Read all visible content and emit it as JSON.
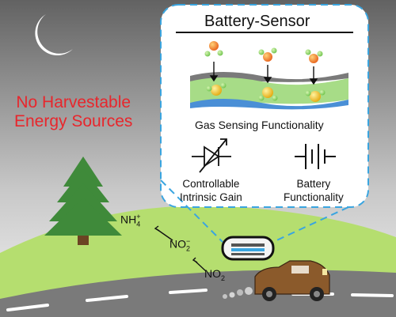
{
  "left_panel": {
    "headline_line1": "No Harvestable",
    "headline_line2": "Energy Sources"
  },
  "inset": {
    "title": "Battery-Sensor",
    "gas_sensing_label": "Gas Sensing Functionality",
    "gain_line1": "Controllable",
    "gain_line2": "Intrinsic Gain",
    "battery_line1": "Battery",
    "battery_line2": "Functionality"
  },
  "chemistry": {
    "nh4_base": "NH",
    "nh4_sub": "4",
    "nh4_sup": "+",
    "no2minus_base": "NO",
    "no2minus_sub": "2",
    "no2minus_sup": "−",
    "no2_base": "NO",
    "no2_sub": "2"
  },
  "colors": {
    "sky_top": "#666666",
    "sky_bottom": "#f2f2f2",
    "hill": "#b5de6f",
    "road": "#7a7a7a",
    "tree": "#3f8a3a",
    "car": "#8b5a2b",
    "headline": "#e8262c",
    "dashed_border": "#3aa5e0",
    "sensor_green": "#a7dc87",
    "sensor_blue": "#4a8fd6"
  },
  "icons": {
    "moon": "moon-icon",
    "tree": "tree-icon",
    "car": "car-icon",
    "sensor": "battery-sensor-device-icon",
    "variable_diode": "variable-diode-icon",
    "battery": "battery-icon"
  }
}
